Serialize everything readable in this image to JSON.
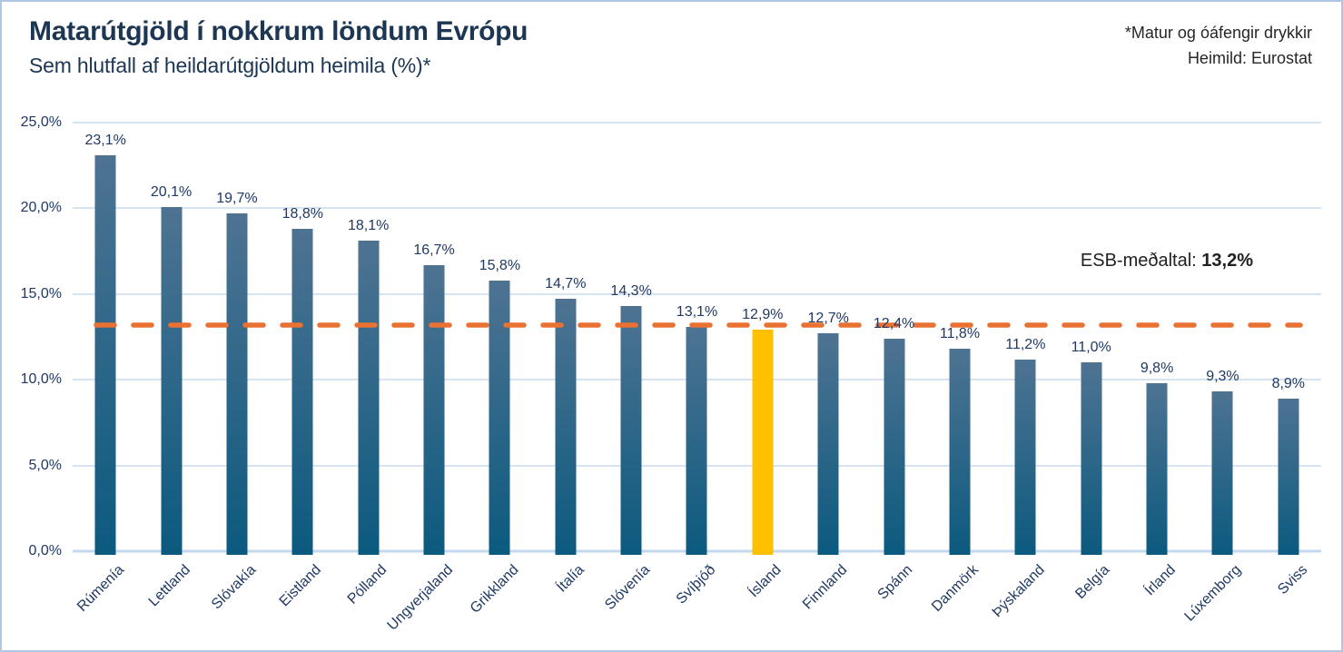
{
  "header": {
    "title": "Matarútgjöld í nokkrum löndum Evrópu",
    "subtitle": "Sem hlutfall af heildarútgjöldum heimila (%)*",
    "note_line1": "*Matur og óáfengir drykkir",
    "note_line2": "Heimild: Eurostat"
  },
  "chart_data": {
    "type": "bar",
    "title": "Matarútgjöld í nokkrum löndum Evrópu",
    "subtitle": "Sem hlutfall af heildarútgjöldum heimila (%)*",
    "categories": [
      "Rúmenía",
      "Lettland",
      "Slóvakía",
      "Eistland",
      "Pólland",
      "Ungverjaland",
      "Grikkland",
      "Ítalía",
      "Slóvenía",
      "Svíþjóð",
      "Ísland",
      "Finnland",
      "Spánn",
      "Danmörk",
      "Þýskaland",
      "Belgía",
      "Írland",
      "Lúxemborg",
      "Sviss"
    ],
    "values": [
      23.1,
      20.1,
      19.7,
      18.8,
      18.1,
      16.7,
      15.8,
      14.7,
      14.3,
      13.1,
      12.9,
      12.7,
      12.4,
      11.8,
      11.2,
      11.0,
      9.8,
      9.3,
      8.9
    ],
    "value_labels": [
      "23,1%",
      "20,1%",
      "19,7%",
      "18,8%",
      "18,1%",
      "16,7%",
      "15,8%",
      "14,7%",
      "14,3%",
      "13,1%",
      "12,9%",
      "12,7%",
      "12,4%",
      "11,8%",
      "11,2%",
      "11,0%",
      "9,8%",
      "9,3%",
      "8,9%"
    ],
    "highlight_index": 10,
    "highlight_color": "#FFC000",
    "bar_gradient_top": "#4E7392",
    "bar_gradient_bottom": "#0C5A7F",
    "label_color": "#1F3864",
    "reference_line": {
      "value": 13.2,
      "label_prefix": "ESB-meðaltal: ",
      "label_value": "13,2%",
      "color": "#E97132"
    },
    "ylim": [
      0,
      25
    ],
    "ytick_step": 5,
    "ytick_labels": [
      "0,0%",
      "5,0%",
      "10,0%",
      "15,0%",
      "20,0%",
      "25,0%"
    ],
    "grid": true,
    "legend": "none"
  }
}
